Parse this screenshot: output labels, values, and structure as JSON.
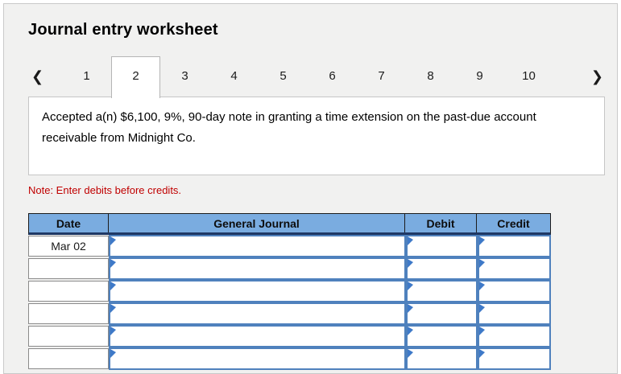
{
  "title": "Journal entry worksheet",
  "tab_bar": {
    "prev_icon": "❮",
    "next_icon": "❯",
    "tabs": [
      "1",
      "2",
      "3",
      "4",
      "5",
      "6",
      "7",
      "8",
      "9",
      "10"
    ],
    "active_tab": "2"
  },
  "description": "Accepted a(n) $6,100, 9%, 90-day note in granting a time extension on the past-due account receivable from Midnight Co.",
  "note": "Note: Enter debits before credits.",
  "journal_table": {
    "headers": [
      "Date",
      "General Journal",
      "Debit",
      "Credit"
    ],
    "rows": [
      {
        "date": "Mar 02",
        "account": "",
        "debit": "",
        "credit": ""
      },
      {
        "date": "",
        "account": "",
        "debit": "",
        "credit": ""
      },
      {
        "date": "",
        "account": "",
        "debit": "",
        "credit": ""
      },
      {
        "date": "",
        "account": "",
        "debit": "",
        "credit": ""
      },
      {
        "date": "",
        "account": "",
        "debit": "",
        "credit": ""
      },
      {
        "date": "",
        "account": "",
        "debit": "",
        "credit": ""
      }
    ]
  },
  "colors": {
    "header_bg": "#7AACE0",
    "cell_border": "#4F81BD",
    "marker": "#3E79C8",
    "note_red": "#C00000",
    "header_border": "#1F3864"
  }
}
